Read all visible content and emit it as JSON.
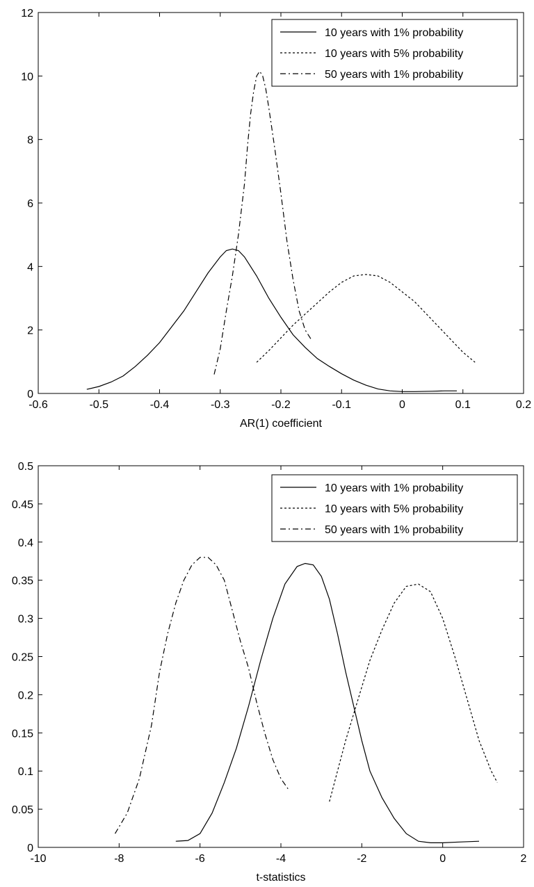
{
  "chart_data": [
    {
      "type": "line",
      "title": "",
      "xlabel": "AR(1) coefficient",
      "ylabel": "",
      "xlim": [
        -0.6,
        0.2
      ],
      "ylim": [
        0,
        12
      ],
      "xticks": [
        -0.6,
        -0.5,
        -0.4,
        -0.3,
        -0.2,
        -0.1,
        0,
        0.1,
        0.2
      ],
      "xtick_labels": [
        "-0.6",
        "-0.5",
        "-0.4",
        "-0.3",
        "-0.2",
        "-0.1",
        "0",
        "0.1",
        "0.2"
      ],
      "yticks": [
        0,
        2,
        4,
        6,
        8,
        10,
        12
      ],
      "ytick_labels": [
        "0",
        "2",
        "4",
        "6",
        "8",
        "10",
        "12"
      ],
      "grid": false,
      "legend_position": "top-right",
      "series": [
        {
          "name": "10 years with 1% probability",
          "style": "solid",
          "points": [
            [
              -0.52,
              0.13
            ],
            [
              -0.5,
              0.22
            ],
            [
              -0.48,
              0.36
            ],
            [
              -0.46,
              0.55
            ],
            [
              -0.44,
              0.85
            ],
            [
              -0.42,
              1.2
            ],
            [
              -0.4,
              1.6
            ],
            [
              -0.38,
              2.1
            ],
            [
              -0.36,
              2.6
            ],
            [
              -0.34,
              3.2
            ],
            [
              -0.32,
              3.8
            ],
            [
              -0.3,
              4.3
            ],
            [
              -0.29,
              4.5
            ],
            [
              -0.28,
              4.55
            ],
            [
              -0.27,
              4.5
            ],
            [
              -0.26,
              4.3
            ],
            [
              -0.24,
              3.7
            ],
            [
              -0.22,
              3.0
            ],
            [
              -0.2,
              2.4
            ],
            [
              -0.18,
              1.85
            ],
            [
              -0.16,
              1.45
            ],
            [
              -0.14,
              1.1
            ],
            [
              -0.12,
              0.85
            ],
            [
              -0.1,
              0.62
            ],
            [
              -0.08,
              0.42
            ],
            [
              -0.06,
              0.26
            ],
            [
              -0.04,
              0.14
            ],
            [
              -0.02,
              0.08
            ],
            [
              0.0,
              0.06
            ],
            [
              0.02,
              0.06
            ],
            [
              0.05,
              0.07
            ],
            [
              0.07,
              0.08
            ],
            [
              0.09,
              0.08
            ]
          ]
        },
        {
          "name": "10 years with 5% probability",
          "style": "dotted",
          "points": [
            [
              -0.24,
              0.98
            ],
            [
              -0.22,
              1.35
            ],
            [
              -0.2,
              1.75
            ],
            [
              -0.18,
              2.15
            ],
            [
              -0.16,
              2.5
            ],
            [
              -0.14,
              2.85
            ],
            [
              -0.12,
              3.2
            ],
            [
              -0.1,
              3.5
            ],
            [
              -0.08,
              3.7
            ],
            [
              -0.06,
              3.75
            ],
            [
              -0.04,
              3.7
            ],
            [
              -0.02,
              3.5
            ],
            [
              0.0,
              3.2
            ],
            [
              0.02,
              2.9
            ],
            [
              0.04,
              2.5
            ],
            [
              0.06,
              2.1
            ],
            [
              0.08,
              1.7
            ],
            [
              0.1,
              1.3
            ],
            [
              0.12,
              0.98
            ]
          ]
        },
        {
          "name": "50 years with 1% probability",
          "style": "dashdot",
          "points": [
            [
              -0.31,
              0.6
            ],
            [
              -0.3,
              1.4
            ],
            [
              -0.29,
              2.6
            ],
            [
              -0.28,
              3.7
            ],
            [
              -0.27,
              5.0
            ],
            [
              -0.26,
              6.6
            ],
            [
              -0.255,
              7.8
            ],
            [
              -0.25,
              8.8
            ],
            [
              -0.245,
              9.5
            ],
            [
              -0.24,
              10.0
            ],
            [
              -0.235,
              10.15
            ],
            [
              -0.23,
              10.0
            ],
            [
              -0.225,
              9.6
            ],
            [
              -0.22,
              9.0
            ],
            [
              -0.21,
              7.7
            ],
            [
              -0.2,
              6.3
            ],
            [
              -0.19,
              4.8
            ],
            [
              -0.18,
              3.6
            ],
            [
              -0.17,
              2.6
            ],
            [
              -0.16,
              2.0
            ],
            [
              -0.15,
              1.7
            ]
          ]
        }
      ]
    },
    {
      "type": "line",
      "title": "",
      "xlabel": "t-statistics",
      "ylabel": "",
      "xlim": [
        -10,
        2
      ],
      "ylim": [
        0,
        0.5
      ],
      "xticks": [
        -10,
        -8,
        -6,
        -4,
        -2,
        0,
        2
      ],
      "xtick_labels": [
        "-10",
        "-8",
        "-6",
        "-4",
        "-2",
        "0",
        "2"
      ],
      "yticks": [
        0,
        0.05,
        0.1,
        0.15,
        0.2,
        0.25,
        0.3,
        0.35,
        0.4,
        0.45,
        0.5
      ],
      "ytick_labels": [
        "0",
        "0.05",
        "0.1",
        "0.15",
        "0.2",
        "0.25",
        "0.3",
        "0.35",
        "0.4",
        "0.45",
        "0.5"
      ],
      "grid": false,
      "legend_position": "top-right",
      "series": [
        {
          "name": "10 years with 1% probability",
          "style": "solid",
          "points": [
            [
              -6.6,
              0.008
            ],
            [
              -6.3,
              0.009
            ],
            [
              -6.0,
              0.018
            ],
            [
              -5.7,
              0.045
            ],
            [
              -5.4,
              0.085
            ],
            [
              -5.1,
              0.13
            ],
            [
              -4.8,
              0.185
            ],
            [
              -4.5,
              0.245
            ],
            [
              -4.2,
              0.3
            ],
            [
              -3.9,
              0.345
            ],
            [
              -3.6,
              0.368
            ],
            [
              -3.4,
              0.372
            ],
            [
              -3.2,
              0.37
            ],
            [
              -3.0,
              0.355
            ],
            [
              -2.8,
              0.325
            ],
            [
              -2.6,
              0.28
            ],
            [
              -2.4,
              0.23
            ],
            [
              -2.2,
              0.185
            ],
            [
              -2.0,
              0.14
            ],
            [
              -1.8,
              0.1
            ],
            [
              -1.5,
              0.065
            ],
            [
              -1.2,
              0.038
            ],
            [
              -0.9,
              0.018
            ],
            [
              -0.6,
              0.008
            ],
            [
              -0.3,
              0.006
            ],
            [
              0.0,
              0.006
            ],
            [
              0.4,
              0.007
            ],
            [
              0.9,
              0.008
            ]
          ]
        },
        {
          "name": "10 years with 5% probability",
          "style": "dotted",
          "points": [
            [
              -2.8,
              0.06
            ],
            [
              -2.6,
              0.1
            ],
            [
              -2.4,
              0.14
            ],
            [
              -2.2,
              0.175
            ],
            [
              -2.0,
              0.21
            ],
            [
              -1.8,
              0.245
            ],
            [
              -1.5,
              0.285
            ],
            [
              -1.2,
              0.32
            ],
            [
              -0.9,
              0.342
            ],
            [
              -0.6,
              0.345
            ],
            [
              -0.3,
              0.335
            ],
            [
              0.0,
              0.3
            ],
            [
              0.3,
              0.25
            ],
            [
              0.6,
              0.195
            ],
            [
              0.9,
              0.14
            ],
            [
              1.2,
              0.1
            ],
            [
              1.35,
              0.085
            ]
          ]
        },
        {
          "name": "50 years with 1% probability",
          "style": "dashdot",
          "points": [
            [
              -8.1,
              0.018
            ],
            [
              -7.8,
              0.045
            ],
            [
              -7.5,
              0.09
            ],
            [
              -7.2,
              0.16
            ],
            [
              -7.0,
              0.23
            ],
            [
              -6.8,
              0.28
            ],
            [
              -6.6,
              0.32
            ],
            [
              -6.4,
              0.35
            ],
            [
              -6.2,
              0.37
            ],
            [
              -6.0,
              0.38
            ],
            [
              -5.8,
              0.38
            ],
            [
              -5.6,
              0.37
            ],
            [
              -5.4,
              0.35
            ],
            [
              -5.2,
              0.31
            ],
            [
              -5.0,
              0.27
            ],
            [
              -4.8,
              0.235
            ],
            [
              -4.6,
              0.19
            ],
            [
              -4.4,
              0.15
            ],
            [
              -4.2,
              0.115
            ],
            [
              -4.0,
              0.09
            ],
            [
              -3.8,
              0.075
            ]
          ]
        }
      ]
    }
  ]
}
